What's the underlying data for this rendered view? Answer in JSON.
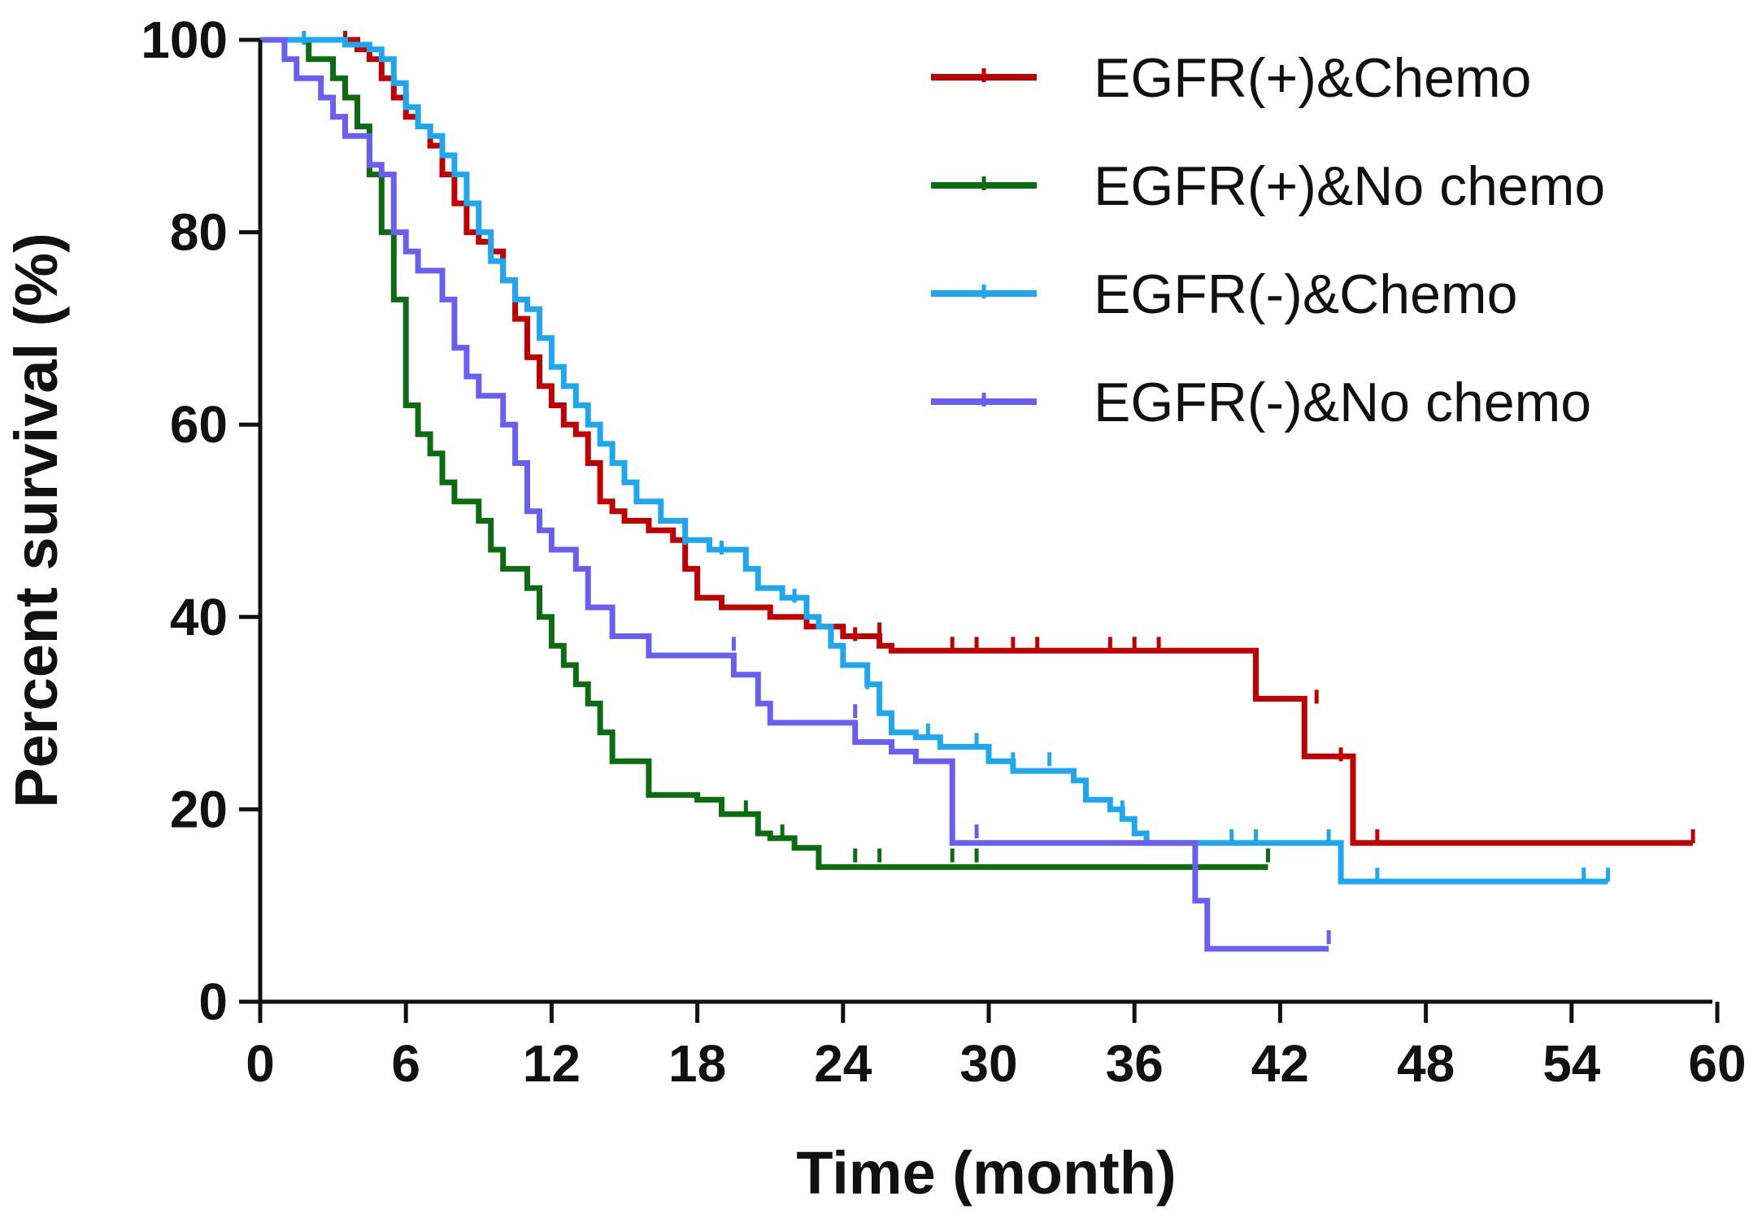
{
  "chart_data": {
    "type": "line",
    "subtype": "kaplan-meier",
    "title": "",
    "xlabel": "Time (month)",
    "ylabel": "Percent survival (%)",
    "xlim": [
      0,
      60
    ],
    "ylim": [
      0,
      100
    ],
    "xticks": [
      0,
      6,
      12,
      18,
      24,
      30,
      36,
      42,
      48,
      54,
      60
    ],
    "yticks": [
      0,
      20,
      40,
      60,
      80,
      100
    ],
    "legend_position": "top-right",
    "grid": false,
    "series": [
      {
        "name": "EGFR(+)&Chemo",
        "color": "#c00000",
        "steps": [
          [
            0,
            100
          ],
          [
            3.5,
            100
          ],
          [
            4.0,
            99
          ],
          [
            4.5,
            98
          ],
          [
            5.0,
            96
          ],
          [
            5.5,
            94
          ],
          [
            6.0,
            92
          ],
          [
            6.5,
            91
          ],
          [
            7.0,
            89
          ],
          [
            7.5,
            86
          ],
          [
            8.0,
            83
          ],
          [
            8.5,
            80
          ],
          [
            9.0,
            79
          ],
          [
            9.5,
            78
          ],
          [
            10.0,
            75
          ],
          [
            10.5,
            71
          ],
          [
            11.0,
            67
          ],
          [
            11.5,
            64
          ],
          [
            12.0,
            62
          ],
          [
            12.5,
            60
          ],
          [
            13.0,
            59
          ],
          [
            13.5,
            56
          ],
          [
            14.0,
            52
          ],
          [
            14.5,
            51
          ],
          [
            15.0,
            50
          ],
          [
            16.0,
            49
          ],
          [
            17.0,
            48
          ],
          [
            17.5,
            45
          ],
          [
            18.0,
            42
          ],
          [
            19.0,
            41
          ],
          [
            21.0,
            40
          ],
          [
            22.5,
            39
          ],
          [
            24.0,
            38
          ],
          [
            25.5,
            37
          ],
          [
            26.0,
            36.5
          ],
          [
            41.0,
            36.5
          ],
          [
            41.0,
            31.5
          ],
          [
            43.0,
            31.5
          ],
          [
            43.0,
            25.5
          ],
          [
            45.0,
            25.5
          ],
          [
            45.0,
            16.5
          ],
          [
            59.0,
            16.5
          ]
        ],
        "censors": [
          [
            3.5,
            100
          ],
          [
            24.5,
            38
          ],
          [
            25.5,
            38.5
          ],
          [
            28.5,
            37
          ],
          [
            29.5,
            37
          ],
          [
            31.0,
            37
          ],
          [
            32.0,
            37
          ],
          [
            35.0,
            37
          ],
          [
            36.0,
            37
          ],
          [
            37.0,
            37
          ],
          [
            43.5,
            31.5
          ],
          [
            44.5,
            25.5
          ],
          [
            46.0,
            17
          ],
          [
            59.0,
            17
          ]
        ]
      },
      {
        "name": "EGFR(+)&No chemo",
        "color": "#0d6b12",
        "steps": [
          [
            0,
            100
          ],
          [
            2.0,
            98
          ],
          [
            3.0,
            96
          ],
          [
            3.5,
            94
          ],
          [
            4.0,
            91
          ],
          [
            4.5,
            86
          ],
          [
            5.0,
            80
          ],
          [
            5.5,
            73
          ],
          [
            6.0,
            62
          ],
          [
            6.5,
            59
          ],
          [
            7.0,
            57
          ],
          [
            7.5,
            54
          ],
          [
            8.0,
            52
          ],
          [
            9.0,
            50
          ],
          [
            9.5,
            47
          ],
          [
            10.0,
            45
          ],
          [
            11.0,
            43
          ],
          [
            11.5,
            40
          ],
          [
            12.0,
            37
          ],
          [
            12.5,
            35
          ],
          [
            13.0,
            33
          ],
          [
            13.5,
            31
          ],
          [
            14.0,
            28
          ],
          [
            14.5,
            25
          ],
          [
            16.0,
            21.5
          ],
          [
            18.0,
            21
          ],
          [
            19.0,
            19.5
          ],
          [
            20.5,
            17.5
          ],
          [
            21.0,
            17
          ],
          [
            22.0,
            16
          ],
          [
            23.0,
            14
          ],
          [
            41.5,
            14
          ]
        ],
        "censors": [
          [
            20.0,
            20
          ],
          [
            21.5,
            17.5
          ],
          [
            24.5,
            15
          ],
          [
            25.5,
            15
          ],
          [
            28.5,
            15
          ],
          [
            29.5,
            15
          ],
          [
            41.5,
            15
          ]
        ]
      },
      {
        "name": "EGFR(-)&Chemo",
        "color": "#1ea7ee",
        "steps": [
          [
            0,
            100
          ],
          [
            1.5,
            100
          ],
          [
            3.5,
            99.5
          ],
          [
            4.5,
            99
          ],
          [
            5.0,
            98
          ],
          [
            5.5,
            95.5
          ],
          [
            6.0,
            93
          ],
          [
            6.5,
            91
          ],
          [
            7.0,
            90
          ],
          [
            7.5,
            88
          ],
          [
            8.0,
            86
          ],
          [
            8.5,
            83
          ],
          [
            9.0,
            80
          ],
          [
            9.5,
            77
          ],
          [
            10.0,
            75
          ],
          [
            10.5,
            73
          ],
          [
            11.0,
            72
          ],
          [
            11.5,
            69
          ],
          [
            12.0,
            66
          ],
          [
            12.5,
            64
          ],
          [
            13.0,
            62
          ],
          [
            13.5,
            60
          ],
          [
            14.0,
            58
          ],
          [
            14.5,
            56
          ],
          [
            15.0,
            54
          ],
          [
            15.5,
            52
          ],
          [
            16.5,
            50
          ],
          [
            17.5,
            48
          ],
          [
            18.5,
            47
          ],
          [
            19.5,
            47
          ],
          [
            20.0,
            45
          ],
          [
            20.5,
            43
          ],
          [
            21.5,
            42
          ],
          [
            22.5,
            40
          ],
          [
            23.0,
            39
          ],
          [
            23.5,
            37
          ],
          [
            24.0,
            35
          ],
          [
            25.0,
            33
          ],
          [
            25.5,
            30
          ],
          [
            26.0,
            28
          ],
          [
            27.0,
            27.5
          ],
          [
            28.0,
            26.5
          ],
          [
            30.0,
            25
          ],
          [
            31.0,
            24
          ],
          [
            33.5,
            23
          ],
          [
            34.0,
            21
          ],
          [
            35.0,
            20
          ],
          [
            35.5,
            19
          ],
          [
            36.0,
            17.5
          ],
          [
            36.5,
            16.5
          ],
          [
            44.5,
            16.5
          ],
          [
            44.5,
            12.5
          ],
          [
            55.5,
            12.5
          ]
        ],
        "censors": [
          [
            1.8,
            100
          ],
          [
            17.5,
            48
          ],
          [
            19.0,
            47
          ],
          [
            22.0,
            42
          ],
          [
            24.0,
            36
          ],
          [
            25.0,
            33
          ],
          [
            27.5,
            28
          ],
          [
            29.5,
            27
          ],
          [
            31.0,
            25
          ],
          [
            32.5,
            25
          ],
          [
            35.5,
            20
          ],
          [
            40.0,
            17
          ],
          [
            41.0,
            17
          ],
          [
            44.0,
            17
          ],
          [
            46.0,
            13
          ],
          [
            54.5,
            13
          ],
          [
            55.5,
            13
          ]
        ]
      },
      {
        "name": "EGFR(-)&No chemo",
        "color": "#6a5ef2",
        "steps": [
          [
            0,
            100
          ],
          [
            1.0,
            98
          ],
          [
            1.5,
            96
          ],
          [
            2.5,
            94
          ],
          [
            3.0,
            92
          ],
          [
            3.5,
            90
          ],
          [
            4.5,
            87
          ],
          [
            5.0,
            86
          ],
          [
            5.5,
            80
          ],
          [
            6.0,
            78
          ],
          [
            6.5,
            76
          ],
          [
            7.5,
            73
          ],
          [
            8.0,
            68
          ],
          [
            8.5,
            65
          ],
          [
            9.0,
            63
          ],
          [
            10.0,
            60
          ],
          [
            10.5,
            56
          ],
          [
            11.0,
            51
          ],
          [
            11.5,
            49
          ],
          [
            12.0,
            47
          ],
          [
            13.0,
            45
          ],
          [
            13.5,
            41
          ],
          [
            14.5,
            38
          ],
          [
            16.0,
            36
          ],
          [
            19.5,
            34
          ],
          [
            20.5,
            31
          ],
          [
            21.0,
            29
          ],
          [
            24.5,
            27
          ],
          [
            26.0,
            26
          ],
          [
            27.0,
            25
          ],
          [
            28.5,
            16.5
          ],
          [
            38.5,
            10.5
          ],
          [
            39.0,
            5.5
          ],
          [
            44.0,
            5.5
          ]
        ],
        "censors": [
          [
            19.5,
            37
          ],
          [
            24.5,
            30
          ],
          [
            29.5,
            17.5
          ],
          [
            44.0,
            6.5
          ]
        ]
      }
    ]
  }
}
